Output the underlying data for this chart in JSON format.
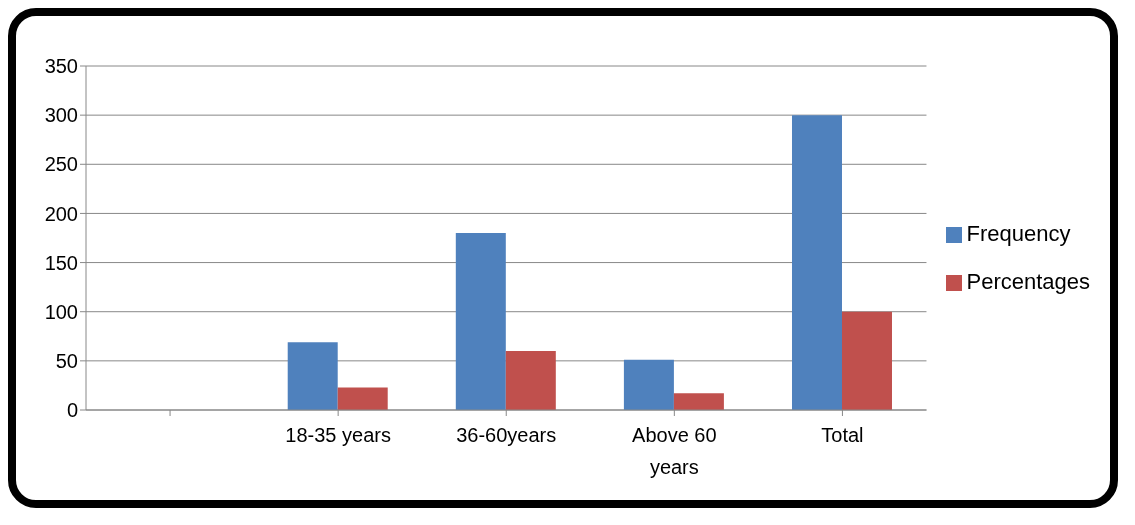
{
  "chart_data": {
    "type": "bar",
    "categories": [
      null,
      "18-35 years",
      "36-60years",
      "Above 60 years",
      "Total"
    ],
    "series": [
      {
        "name": "Frequency",
        "color": "#4f81bd",
        "values": [
          null,
          69,
          180,
          51,
          300
        ]
      },
      {
        "name": "Percentages",
        "color": "#c0504d",
        "values": [
          null,
          23,
          60,
          17,
          100
        ]
      }
    ],
    "ylim": [
      0,
      350
    ],
    "yticks": [
      0,
      50,
      100,
      150,
      200,
      250,
      300,
      350
    ],
    "grid": "y",
    "legend": "right"
  }
}
